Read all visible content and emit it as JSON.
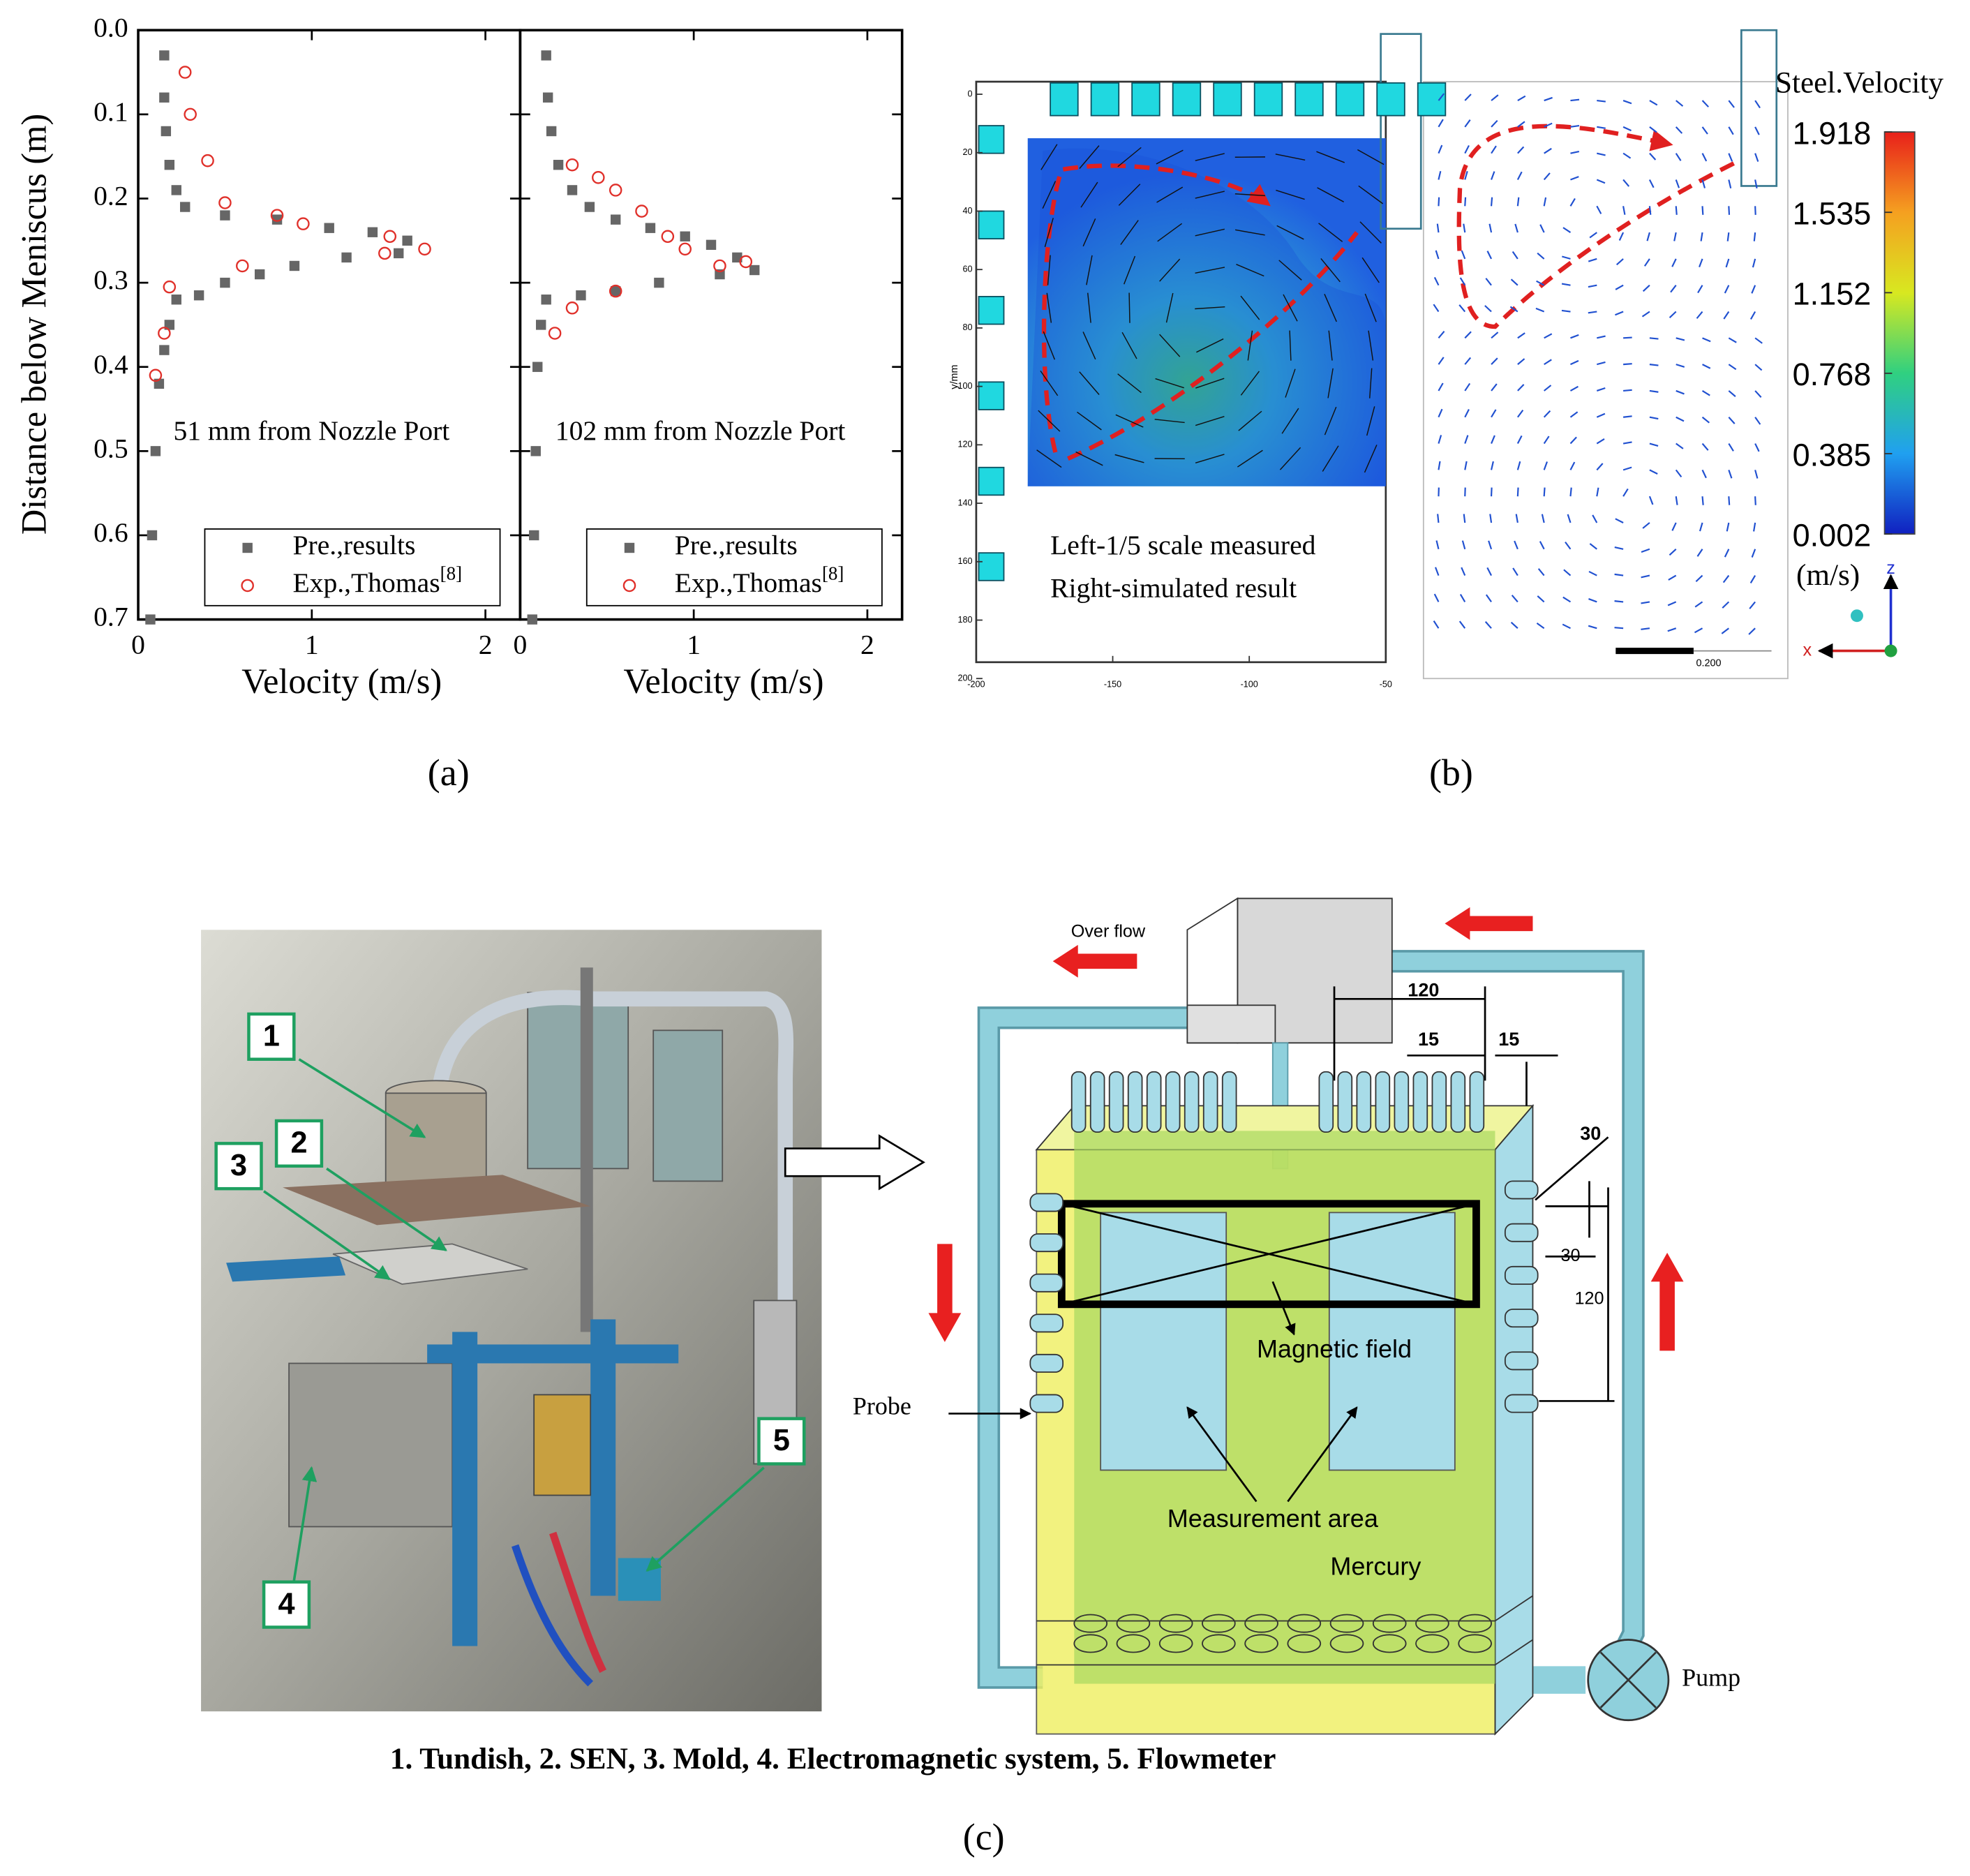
{
  "panel_labels": [
    "(a)",
    "(b)",
    "(c)"
  ],
  "chart_data": [
    {
      "type": "scatter",
      "annotation": "51 mm from Nozzle Port",
      "xlabel": "Velocity (m/s)",
      "ylabel": "Distance below Meniscus (m)",
      "xlim": [
        0,
        2.2
      ],
      "ylim": [
        0,
        0.7
      ],
      "y_inverted": true,
      "legend": "lower right",
      "xticks": [
        0,
        1,
        2
      ],
      "yticks": [
        {
          "value": 0,
          "label": "0.0"
        },
        0.1,
        0.2,
        0.3,
        0.4,
        0.5,
        0.6,
        0.7
      ],
      "series": [
        {
          "name": "Pre.,results",
          "marker": "square",
          "color": "#666666",
          "x": [
            0.15,
            0.15,
            0.16,
            0.18,
            0.22,
            0.27,
            0.5,
            0.8,
            1.1,
            1.35,
            1.55,
            1.5,
            1.2,
            0.9,
            0.7,
            0.5,
            0.35,
            0.22,
            0.18,
            0.15,
            0.12,
            0.1,
            0.08,
            0.07
          ],
          "y": [
            0.03,
            0.08,
            0.12,
            0.16,
            0.19,
            0.21,
            0.22,
            0.225,
            0.235,
            0.24,
            0.25,
            0.265,
            0.27,
            0.28,
            0.29,
            0.3,
            0.315,
            0.32,
            0.35,
            0.38,
            0.42,
            0.5,
            0.6,
            0.7
          ]
        },
        {
          "name": "Exp.,Thomas",
          "name_ref": "[8]",
          "marker": "circle",
          "color": "#e0302a",
          "x": [
            0.27,
            0.3,
            0.4,
            0.5,
            0.8,
            0.95,
            1.45,
            1.65,
            1.42,
            0.6,
            0.18,
            0.15,
            0.1
          ],
          "y": [
            0.05,
            0.1,
            0.155,
            0.205,
            0.22,
            0.23,
            0.245,
            0.26,
            0.265,
            0.28,
            0.305,
            0.36,
            0.41
          ]
        }
      ]
    },
    {
      "type": "scatter",
      "annotation": "102 mm from Nozzle Port",
      "xlabel": "Velocity (m/s)",
      "xlim": [
        0,
        2.2
      ],
      "ylim": [
        0,
        0.7
      ],
      "y_inverted": true,
      "legend": "lower right",
      "xticks": [
        0,
        1,
        2
      ],
      "yticks": [
        0,
        0.1,
        0.2,
        0.3,
        0.4,
        0.5,
        0.6,
        0.7
      ],
      "series": [
        {
          "name": "Pre.,results",
          "marker": "square",
          "color": "#666666",
          "x": [
            0.15,
            0.16,
            0.18,
            0.22,
            0.3,
            0.4,
            0.55,
            0.75,
            0.95,
            1.1,
            1.25,
            1.35,
            1.15,
            0.8,
            0.55,
            0.35,
            0.15,
            0.12,
            0.1,
            0.09,
            0.08,
            0.07
          ],
          "y": [
            0.03,
            0.08,
            0.12,
            0.16,
            0.19,
            0.21,
            0.225,
            0.235,
            0.245,
            0.255,
            0.27,
            0.285,
            0.29,
            0.3,
            0.31,
            0.315,
            0.32,
            0.35,
            0.4,
            0.5,
            0.6,
            0.7
          ]
        },
        {
          "name": "Exp.,Thomas",
          "name_ref": "[8]",
          "marker": "circle",
          "color": "#e0302a",
          "x": [
            0.3,
            0.45,
            0.55,
            0.7,
            0.85,
            0.95,
            1.15,
            1.3,
            0.55,
            0.3,
            0.2
          ],
          "y": [
            0.16,
            0.175,
            0.19,
            0.215,
            0.245,
            0.26,
            0.28,
            0.275,
            0.31,
            0.33,
            0.36
          ]
        }
      ]
    }
  ],
  "panel_b": {
    "colorbar": {
      "title": "Steel.Velocity",
      "ticks": [
        1.918,
        1.535,
        1.152,
        0.768,
        0.385,
        0.002
      ],
      "unit": "(m/s)"
    },
    "note": [
      "Left-1/5 scale measured",
      "Right-simulated result"
    ],
    "yticks": [
      0,
      20,
      40,
      60,
      80,
      100,
      120,
      140,
      160,
      180,
      200
    ],
    "xticks": [
      -200,
      -150,
      -100,
      -50
    ],
    "ylabel": "y/mm",
    "scale_label": "0.200",
    "axes": [
      "z",
      "x"
    ]
  },
  "panel_c": {
    "photo_labels": [
      "1",
      "2",
      "3",
      "4",
      "5"
    ],
    "diagram": {
      "overflow": "Over flow",
      "dim_120_top": "120",
      "dim_15_left": "15",
      "dim_15_right": "15",
      "dim_30_top": "30",
      "dim_30_side": "30",
      "dim_120_side": "120",
      "magnetic": "Magnetic field",
      "measurement": "Measurement area",
      "mercury": "Mercury",
      "probe": "Probe",
      "pump": "Pump"
    },
    "caption": "1. Tundish, 2. SEN, 3. Mold, 4. Electromagnetic system, 5. Flowmeter"
  }
}
